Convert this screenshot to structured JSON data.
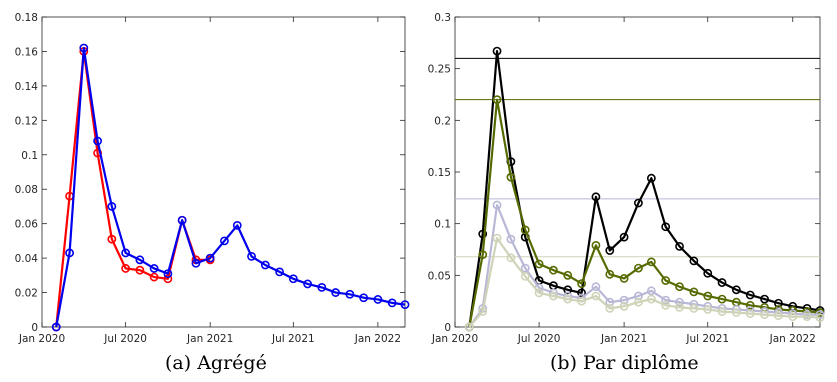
{
  "captions": {
    "left": "(a) Agrégé",
    "right": "(b) Par diplôme"
  },
  "chart_data": [
    {
      "type": "line",
      "title": "",
      "caption": "(a) Agrégé",
      "xlabel": "",
      "ylabel": "",
      "xlim": [
        "2020-01-01",
        "2022-03-01"
      ],
      "ylim": [
        0,
        0.18
      ],
      "yticks": [
        0,
        0.02,
        0.04,
        0.06,
        0.08,
        0.1,
        0.12,
        0.14,
        0.16,
        0.18
      ],
      "ytick_labels": [
        "0",
        "0.02",
        "0.04",
        "0.06",
        "0.08",
        "0.1",
        "0.12",
        "0.14",
        "0.16",
        "0.18"
      ],
      "xticks": [
        "2020-01-01",
        "2020-07-01",
        "2021-01-01",
        "2021-07-01",
        "2022-01-01"
      ],
      "xtick_labels": [
        "Jan 2020",
        "Jul 2020",
        "Jan 2021",
        "Jul 2021",
        "Jan 2022"
      ],
      "grid": false,
      "legend": "none",
      "series": [
        {
          "color": "#ff0000",
          "marker": "circle",
          "points": [
            [
              "2020-02-01",
              0.0
            ],
            [
              "2020-03-01",
              0.076
            ],
            [
              "2020-04-01",
              0.16
            ],
            [
              "2020-05-01",
              0.101
            ],
            [
              "2020-06-01",
              0.051
            ],
            [
              "2020-07-01",
              0.034
            ],
            [
              "2020-08-01",
              0.033
            ],
            [
              "2020-09-01",
              0.029
            ],
            [
              "2020-10-01",
              0.028
            ],
            [
              "2020-11-01",
              0.062
            ],
            [
              "2020-12-01",
              0.039
            ],
            [
              "2021-01-01",
              0.039
            ]
          ]
        },
        {
          "color": "#0000ee",
          "marker": "circle",
          "points": [
            [
              "2020-02-01",
              0.0
            ],
            [
              "2020-03-01",
              0.043
            ],
            [
              "2020-04-01",
              0.162
            ],
            [
              "2020-05-01",
              0.108
            ],
            [
              "2020-06-01",
              0.07
            ],
            [
              "2020-07-01",
              0.043
            ],
            [
              "2020-08-01",
              0.039
            ],
            [
              "2020-09-01",
              0.034
            ],
            [
              "2020-10-01",
              0.031
            ],
            [
              "2020-11-01",
              0.062
            ],
            [
              "2020-12-01",
              0.037
            ],
            [
              "2021-01-01",
              0.04
            ],
            [
              "2021-02-01",
              0.05
            ],
            [
              "2021-03-01",
              0.059
            ],
            [
              "2021-04-01",
              0.041
            ],
            [
              "2021-05-01",
              0.036
            ],
            [
              "2021-06-01",
              0.032
            ],
            [
              "2021-07-01",
              0.028
            ],
            [
              "2021-08-01",
              0.025
            ],
            [
              "2021-09-01",
              0.023
            ],
            [
              "2021-10-01",
              0.02
            ],
            [
              "2021-11-01",
              0.019
            ],
            [
              "2021-12-01",
              0.017
            ],
            [
              "2022-01-01",
              0.016
            ],
            [
              "2022-02-01",
              0.014
            ],
            [
              "2022-03-01",
              0.013
            ]
          ]
        }
      ]
    },
    {
      "type": "line",
      "title": "",
      "caption": "(b) Par diplôme",
      "xlabel": "",
      "ylabel": "",
      "xlim": [
        "2020-01-01",
        "2022-03-01"
      ],
      "ylim": [
        0,
        0.3
      ],
      "yticks": [
        0,
        0.05,
        0.1,
        0.15,
        0.2,
        0.25,
        0.3
      ],
      "ytick_labels": [
        "0",
        "0.05",
        "0.1",
        "0.15",
        "0.2",
        "0.25",
        "0.3"
      ],
      "xticks": [
        "2020-01-01",
        "2020-07-01",
        "2021-01-01",
        "2021-07-01",
        "2022-01-01"
      ],
      "xtick_labels": [
        "Jan 2020",
        "Jul 2020",
        "Jan 2021",
        "Jul 2021",
        "Jan 2022"
      ],
      "grid": false,
      "legend": "none",
      "reference_lines": [
        {
          "y": 0.26,
          "color": "#000000"
        },
        {
          "y": 0.22,
          "color": "#556b00"
        },
        {
          "y": 0.124,
          "color": "#b8b8d6"
        },
        {
          "y": 0.068,
          "color": "#cfd3b8"
        }
      ],
      "series": [
        {
          "color": "#000000",
          "marker": "circle",
          "points": [
            [
              "2020-02-01",
              0.0
            ],
            [
              "2020-03-01",
              0.09
            ],
            [
              "2020-04-01",
              0.267
            ],
            [
              "2020-05-01",
              0.16
            ],
            [
              "2020-06-01",
              0.087
            ],
            [
              "2020-07-01",
              0.045
            ],
            [
              "2020-08-01",
              0.04
            ],
            [
              "2020-09-01",
              0.036
            ],
            [
              "2020-10-01",
              0.033
            ],
            [
              "2020-11-01",
              0.126
            ],
            [
              "2020-12-01",
              0.074
            ],
            [
              "2021-01-01",
              0.087
            ],
            [
              "2021-02-01",
              0.12
            ],
            [
              "2021-03-01",
              0.144
            ],
            [
              "2021-04-01",
              0.097
            ],
            [
              "2021-05-01",
              0.078
            ],
            [
              "2021-06-01",
              0.064
            ],
            [
              "2021-07-01",
              0.052
            ],
            [
              "2021-08-01",
              0.043
            ],
            [
              "2021-09-01",
              0.036
            ],
            [
              "2021-10-01",
              0.031
            ],
            [
              "2021-11-01",
              0.027
            ],
            [
              "2021-12-01",
              0.023
            ],
            [
              "2022-01-01",
              0.02
            ],
            [
              "2022-02-01",
              0.018
            ],
            [
              "2022-03-01",
              0.016
            ]
          ]
        },
        {
          "color": "#556b00",
          "marker": "circle",
          "points": [
            [
              "2020-02-01",
              0.0
            ],
            [
              "2020-03-01",
              0.07
            ],
            [
              "2020-04-01",
              0.22
            ],
            [
              "2020-05-01",
              0.145
            ],
            [
              "2020-06-01",
              0.094
            ],
            [
              "2020-07-01",
              0.061
            ],
            [
              "2020-08-01",
              0.055
            ],
            [
              "2020-09-01",
              0.05
            ],
            [
              "2020-10-01",
              0.042
            ],
            [
              "2020-11-01",
              0.079
            ],
            [
              "2020-12-01",
              0.051
            ],
            [
              "2021-01-01",
              0.047
            ],
            [
              "2021-02-01",
              0.057
            ],
            [
              "2021-03-01",
              0.063
            ],
            [
              "2021-04-01",
              0.045
            ],
            [
              "2021-05-01",
              0.039
            ],
            [
              "2021-06-01",
              0.034
            ],
            [
              "2021-07-01",
              0.03
            ],
            [
              "2021-08-01",
              0.027
            ],
            [
              "2021-09-01",
              0.024
            ],
            [
              "2021-10-01",
              0.021
            ],
            [
              "2021-11-01",
              0.019
            ],
            [
              "2021-12-01",
              0.017
            ],
            [
              "2022-01-01",
              0.016
            ],
            [
              "2022-02-01",
              0.015
            ],
            [
              "2022-03-01",
              0.014
            ]
          ]
        },
        {
          "color": "#b8b8d6",
          "marker": "circle",
          "points": [
            [
              "2020-02-01",
              0.0
            ],
            [
              "2020-03-01",
              0.018
            ],
            [
              "2020-04-01",
              0.118
            ],
            [
              "2020-05-01",
              0.085
            ],
            [
              "2020-06-01",
              0.057
            ],
            [
              "2020-07-01",
              0.038
            ],
            [
              "2020-08-01",
              0.033
            ],
            [
              "2020-09-01",
              0.03
            ],
            [
              "2020-10-01",
              0.028
            ],
            [
              "2020-11-01",
              0.039
            ],
            [
              "2020-12-01",
              0.024
            ],
            [
              "2021-01-01",
              0.026
            ],
            [
              "2021-02-01",
              0.03
            ],
            [
              "2021-03-01",
              0.035
            ],
            [
              "2021-04-01",
              0.026
            ],
            [
              "2021-05-01",
              0.024
            ],
            [
              "2021-06-01",
              0.022
            ],
            [
              "2021-07-01",
              0.02
            ],
            [
              "2021-08-01",
              0.018
            ],
            [
              "2021-09-01",
              0.017
            ],
            [
              "2021-10-01",
              0.016
            ],
            [
              "2021-11-01",
              0.015
            ],
            [
              "2021-12-01",
              0.014
            ],
            [
              "2022-01-01",
              0.013
            ],
            [
              "2022-02-01",
              0.012
            ],
            [
              "2022-03-01",
              0.012
            ]
          ]
        },
        {
          "color": "#cfd3b8",
          "marker": "circle",
          "points": [
            [
              "2020-02-01",
              0.0
            ],
            [
              "2020-03-01",
              0.015
            ],
            [
              "2020-04-01",
              0.086
            ],
            [
              "2020-05-01",
              0.067
            ],
            [
              "2020-06-01",
              0.049
            ],
            [
              "2020-07-01",
              0.033
            ],
            [
              "2020-08-01",
              0.03
            ],
            [
              "2020-09-01",
              0.027
            ],
            [
              "2020-10-01",
              0.025
            ],
            [
              "2020-11-01",
              0.03
            ],
            [
              "2020-12-01",
              0.018
            ],
            [
              "2021-01-01",
              0.02
            ],
            [
              "2021-02-01",
              0.024
            ],
            [
              "2021-03-01",
              0.027
            ],
            [
              "2021-04-01",
              0.021
            ],
            [
              "2021-05-01",
              0.019
            ],
            [
              "2021-06-01",
              0.018
            ],
            [
              "2021-07-01",
              0.017
            ],
            [
              "2021-08-01",
              0.015
            ],
            [
              "2021-09-01",
              0.014
            ],
            [
              "2021-10-01",
              0.013
            ],
            [
              "2021-11-01",
              0.012
            ],
            [
              "2021-12-01",
              0.011
            ],
            [
              "2022-01-01",
              0.01
            ],
            [
              "2022-02-01",
              0.01
            ],
            [
              "2022-03-01",
              0.009
            ]
          ]
        }
      ]
    }
  ]
}
